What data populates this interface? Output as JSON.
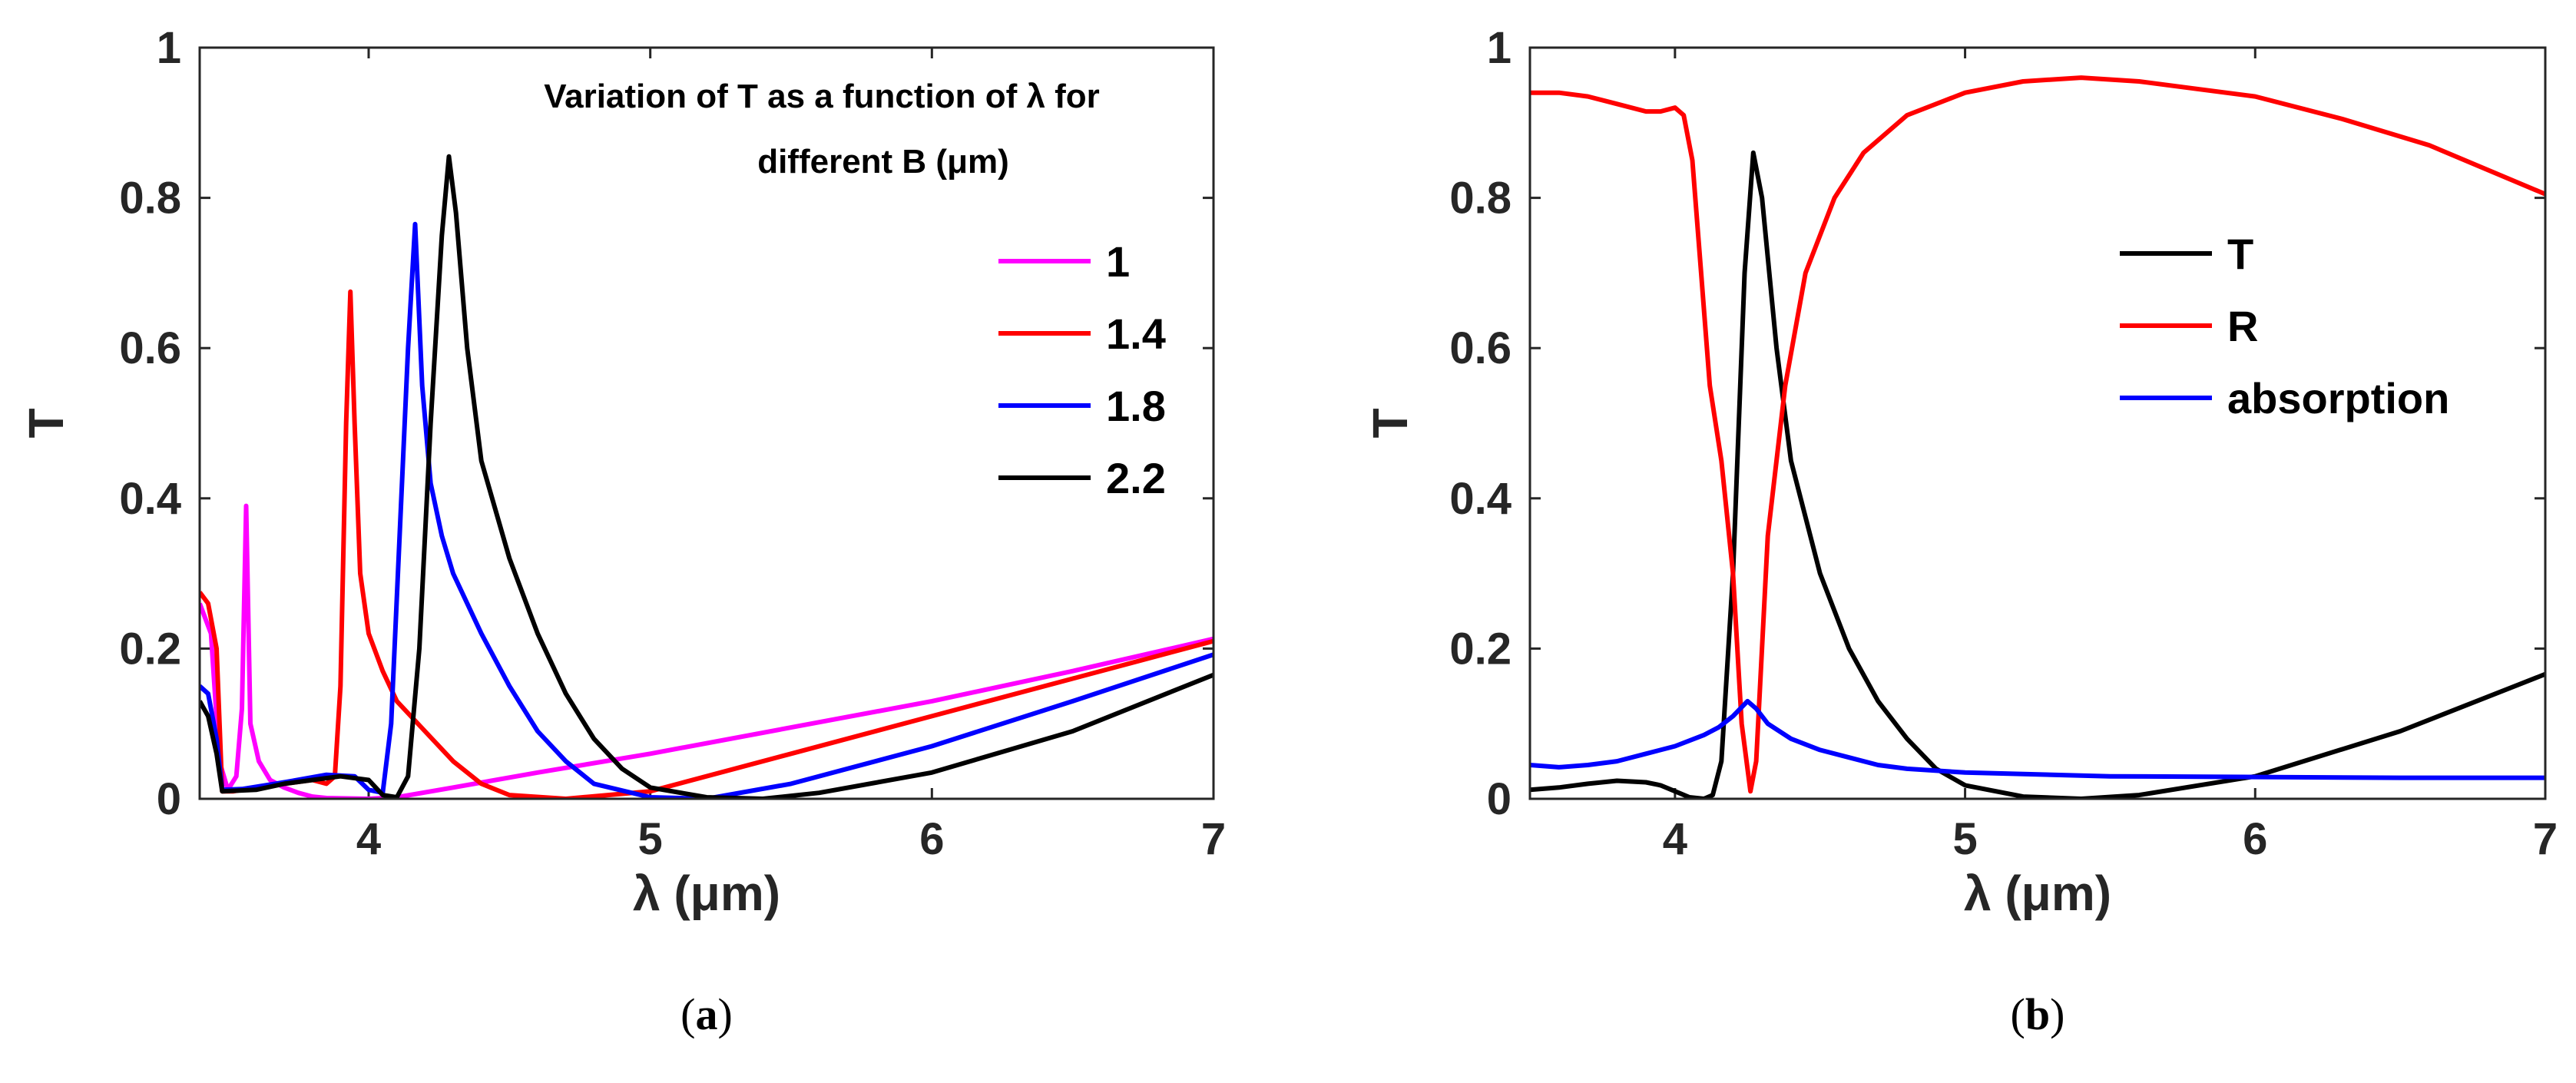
{
  "chart_data": [
    {
      "type": "line",
      "panel_label": "(a)",
      "title_lines": [
        "Variation of T as a function of λ for",
        "different B (μm)"
      ],
      "xlabel": "λ (μm)",
      "ylabel": "T",
      "xlim": [
        3.4,
        7
      ],
      "ylim": [
        0,
        1
      ],
      "xticks": [
        4,
        5,
        6,
        7
      ],
      "xtick_labels": [
        "4",
        "5",
        "6",
        "7"
      ],
      "yticks": [
        0,
        0.2,
        0.4,
        0.6,
        0.8,
        1
      ],
      "ytick_labels": [
        "0",
        "0.2",
        "0.4",
        "0.6",
        "0.8",
        "1"
      ],
      "legend_position": "right",
      "series": [
        {
          "name": "1",
          "color": "#ff00ff",
          "points": [
            [
              3.4,
              0.26
            ],
            [
              3.44,
              0.22
            ],
            [
              3.47,
              0.05
            ],
            [
              3.5,
              0.012
            ],
            [
              3.53,
              0.03
            ],
            [
              3.55,
              0.12
            ],
            [
              3.565,
              0.39
            ],
            [
              3.58,
              0.1
            ],
            [
              3.61,
              0.05
            ],
            [
              3.65,
              0.025
            ],
            [
              3.7,
              0.015
            ],
            [
              3.75,
              0.008
            ],
            [
              3.8,
              0.003
            ],
            [
              3.85,
              0.001
            ],
            [
              4.0,
              0.0
            ],
            [
              4.1,
              0.002
            ],
            [
              4.3,
              0.015
            ],
            [
              4.6,
              0.035
            ],
            [
              5.0,
              0.06
            ],
            [
              5.5,
              0.095
            ],
            [
              6.0,
              0.13
            ],
            [
              6.5,
              0.17
            ],
            [
              7.0,
              0.213
            ]
          ]
        },
        {
          "name": "1.4",
          "color": "#ff0000",
          "points": [
            [
              3.4,
              0.275
            ],
            [
              3.43,
              0.26
            ],
            [
              3.46,
              0.2
            ],
            [
              3.48,
              0.01
            ],
            [
              3.52,
              0.01
            ],
            [
              3.6,
              0.015
            ],
            [
              3.7,
              0.02
            ],
            [
              3.8,
              0.025
            ],
            [
              3.85,
              0.02
            ],
            [
              3.88,
              0.03
            ],
            [
              3.9,
              0.15
            ],
            [
              3.92,
              0.5
            ],
            [
              3.935,
              0.675
            ],
            [
              3.95,
              0.5
            ],
            [
              3.97,
              0.3
            ],
            [
              4.0,
              0.22
            ],
            [
              4.05,
              0.17
            ],
            [
              4.1,
              0.13
            ],
            [
              4.2,
              0.09
            ],
            [
              4.3,
              0.05
            ],
            [
              4.4,
              0.02
            ],
            [
              4.5,
              0.005
            ],
            [
              4.7,
              0.0
            ],
            [
              5.0,
              0.01
            ],
            [
              5.5,
              0.06
            ],
            [
              6.0,
              0.11
            ],
            [
              6.5,
              0.16
            ],
            [
              7.0,
              0.21
            ]
          ]
        },
        {
          "name": "1.8",
          "color": "#0000ff",
          "points": [
            [
              3.4,
              0.15
            ],
            [
              3.43,
              0.14
            ],
            [
              3.46,
              0.08
            ],
            [
              3.48,
              0.012
            ],
            [
              3.55,
              0.013
            ],
            [
              3.7,
              0.022
            ],
            [
              3.85,
              0.032
            ],
            [
              3.95,
              0.03
            ],
            [
              4.0,
              0.012
            ],
            [
              4.05,
              0.008
            ],
            [
              4.08,
              0.1
            ],
            [
              4.11,
              0.35
            ],
            [
              4.14,
              0.6
            ],
            [
              4.165,
              0.765
            ],
            [
              4.19,
              0.55
            ],
            [
              4.22,
              0.42
            ],
            [
              4.26,
              0.35
            ],
            [
              4.3,
              0.3
            ],
            [
              4.4,
              0.22
            ],
            [
              4.5,
              0.15
            ],
            [
              4.6,
              0.09
            ],
            [
              4.7,
              0.05
            ],
            [
              4.8,
              0.02
            ],
            [
              5.0,
              0.002
            ],
            [
              5.2,
              0.0
            ],
            [
              5.5,
              0.02
            ],
            [
              6.0,
              0.07
            ],
            [
              6.5,
              0.13
            ],
            [
              7.0,
              0.192
            ]
          ]
        },
        {
          "name": "2.2",
          "color": "#000000",
          "points": [
            [
              3.4,
              0.13
            ],
            [
              3.43,
              0.11
            ],
            [
              3.46,
              0.06
            ],
            [
              3.48,
              0.01
            ],
            [
              3.6,
              0.012
            ],
            [
              3.7,
              0.02
            ],
            [
              3.8,
              0.025
            ],
            [
              3.9,
              0.03
            ],
            [
              4.0,
              0.025
            ],
            [
              4.05,
              0.005
            ],
            [
              4.1,
              0.002
            ],
            [
              4.14,
              0.03
            ],
            [
              4.18,
              0.2
            ],
            [
              4.22,
              0.5
            ],
            [
              4.26,
              0.75
            ],
            [
              4.285,
              0.855
            ],
            [
              4.31,
              0.78
            ],
            [
              4.35,
              0.6
            ],
            [
              4.4,
              0.45
            ],
            [
              4.5,
              0.32
            ],
            [
              4.6,
              0.22
            ],
            [
              4.7,
              0.14
            ],
            [
              4.8,
              0.08
            ],
            [
              4.9,
              0.04
            ],
            [
              5.0,
              0.015
            ],
            [
              5.2,
              0.002
            ],
            [
              5.4,
              0.0
            ],
            [
              5.6,
              0.008
            ],
            [
              6.0,
              0.035
            ],
            [
              6.5,
              0.09
            ],
            [
              7.0,
              0.165
            ]
          ]
        }
      ]
    },
    {
      "type": "line",
      "panel_label": "(b)",
      "xlabel": "λ (μm)",
      "ylabel": "T",
      "xlim": [
        3.5,
        7
      ],
      "ylim": [
        0,
        1
      ],
      "xticks": [
        4,
        5,
        6,
        7
      ],
      "xtick_labels": [
        "4",
        "5",
        "6",
        "7"
      ],
      "yticks": [
        0,
        0.2,
        0.4,
        0.6,
        0.8,
        1
      ],
      "ytick_labels": [
        "0",
        "0.2",
        "0.4",
        "0.6",
        "0.8",
        "1"
      ],
      "legend_position": "right",
      "series": [
        {
          "name": "T",
          "color": "#000000",
          "points": [
            [
              3.5,
              0.012
            ],
            [
              3.6,
              0.015
            ],
            [
              3.7,
              0.02
            ],
            [
              3.8,
              0.024
            ],
            [
              3.9,
              0.022
            ],
            [
              3.95,
              0.018
            ],
            [
              4.0,
              0.01
            ],
            [
              4.05,
              0.002
            ],
            [
              4.1,
              0.0
            ],
            [
              4.13,
              0.005
            ],
            [
              4.16,
              0.05
            ],
            [
              4.2,
              0.3
            ],
            [
              4.24,
              0.7
            ],
            [
              4.27,
              0.86
            ],
            [
              4.3,
              0.8
            ],
            [
              4.35,
              0.6
            ],
            [
              4.4,
              0.45
            ],
            [
              4.5,
              0.3
            ],
            [
              4.6,
              0.2
            ],
            [
              4.7,
              0.13
            ],
            [
              4.8,
              0.08
            ],
            [
              4.9,
              0.04
            ],
            [
              5.0,
              0.018
            ],
            [
              5.2,
              0.003
            ],
            [
              5.4,
              0.0
            ],
            [
              5.6,
              0.005
            ],
            [
              6.0,
              0.03
            ],
            [
              6.5,
              0.09
            ],
            [
              7.0,
              0.166
            ]
          ]
        },
        {
          "name": "R",
          "color": "#ff0000",
          "points": [
            [
              3.5,
              0.94
            ],
            [
              3.6,
              0.94
            ],
            [
              3.7,
              0.935
            ],
            [
              3.8,
              0.925
            ],
            [
              3.9,
              0.915
            ],
            [
              3.95,
              0.915
            ],
            [
              4.0,
              0.92
            ],
            [
              4.03,
              0.91
            ],
            [
              4.06,
              0.85
            ],
            [
              4.09,
              0.7
            ],
            [
              4.12,
              0.55
            ],
            [
              4.16,
              0.45
            ],
            [
              4.2,
              0.3
            ],
            [
              4.23,
              0.1
            ],
            [
              4.26,
              0.01
            ],
            [
              4.28,
              0.05
            ],
            [
              4.32,
              0.35
            ],
            [
              4.38,
              0.55
            ],
            [
              4.45,
              0.7
            ],
            [
              4.55,
              0.8
            ],
            [
              4.65,
              0.86
            ],
            [
              4.8,
              0.91
            ],
            [
              5.0,
              0.94
            ],
            [
              5.2,
              0.955
            ],
            [
              5.4,
              0.96
            ],
            [
              5.6,
              0.955
            ],
            [
              5.8,
              0.945
            ],
            [
              6.0,
              0.935
            ],
            [
              6.3,
              0.905
            ],
            [
              6.6,
              0.87
            ],
            [
              7.0,
              0.805
            ]
          ]
        },
        {
          "name": "absorption",
          "color": "#0000ff",
          "points": [
            [
              3.5,
              0.045
            ],
            [
              3.6,
              0.042
            ],
            [
              3.7,
              0.045
            ],
            [
              3.8,
              0.05
            ],
            [
              3.9,
              0.06
            ],
            [
              4.0,
              0.07
            ],
            [
              4.1,
              0.085
            ],
            [
              4.15,
              0.095
            ],
            [
              4.2,
              0.11
            ],
            [
              4.25,
              0.13
            ],
            [
              4.28,
              0.12
            ],
            [
              4.32,
              0.1
            ],
            [
              4.4,
              0.08
            ],
            [
              4.5,
              0.065
            ],
            [
              4.6,
              0.055
            ],
            [
              4.7,
              0.045
            ],
            [
              4.8,
              0.04
            ],
            [
              5.0,
              0.035
            ],
            [
              5.5,
              0.03
            ],
            [
              6.0,
              0.029
            ],
            [
              6.5,
              0.028
            ],
            [
              7.0,
              0.028
            ]
          ]
        }
      ]
    }
  ]
}
